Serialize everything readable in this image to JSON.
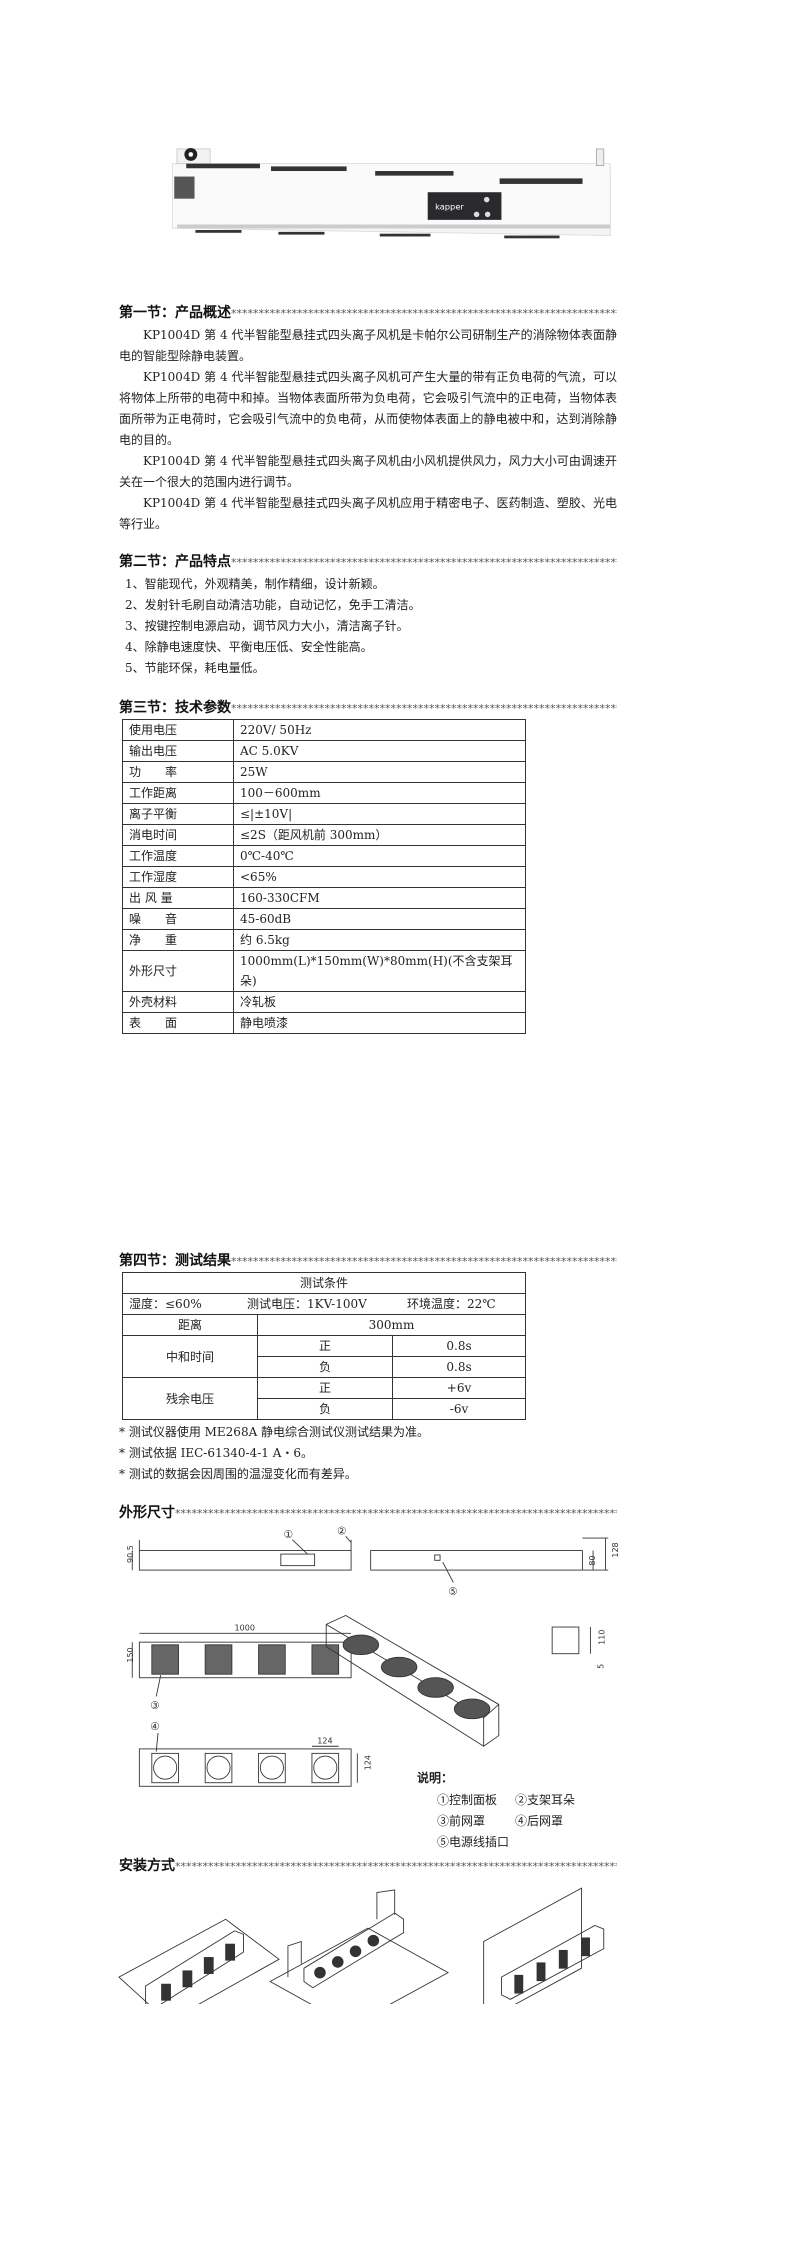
{
  "stars": "**************************************************************************************",
  "product_image": {
    "logo": "kapper"
  },
  "s1": {
    "title": "第一节：产品概述",
    "paragraphs": [
      "KP1004D 第 4 代半智能型悬挂式四头离子风机是卡帕尔公司研制生产的消除物体表面静电的智能型除静电装置。",
      "KP1004D 第 4 代半智能型悬挂式四头离子风机可产生大量的带有正负电荷的气流，可以将物体上所带的电荷中和掉。当物体表面所带为负电荷，它会吸引气流中的正电荷，当物体表面所带为正电荷时，它会吸引气流中的负电荷，从而使物体表面上的静电被中和，达到消除静电的目的。",
      "KP1004D 第 4 代半智能型悬挂式四头离子风机由小风机提供风力，风力大小可由调速开关在一个很大的范围内进行调节。",
      "KP1004D 第 4 代半智能型悬挂式四头离子风机应用于精密电子、医药制造、塑胶、光电等行业。"
    ]
  },
  "s2": {
    "title": "第二节：产品特点",
    "items": [
      "1、智能现代，外观精美，制作精细，设计新颖。",
      "2、发射针毛刷自动清洁功能，自动记忆，免手工清洁。",
      "3、按键控制电源启动，调节风力大小，清洁离子针。",
      "4、除静电速度快、平衡电压低、安全性能高。",
      "5、节能环保，耗电量低。"
    ]
  },
  "s3": {
    "title": "第三节：技术参数",
    "rows": [
      [
        "使用电压",
        "220V/ 50Hz"
      ],
      [
        "输出电压",
        "AC 5.0KV"
      ],
      [
        "功　　率",
        "25W"
      ],
      [
        "工作距离",
        "100－600mm"
      ],
      [
        "离子平衡",
        "≤|±10V|"
      ],
      [
        "消电时间",
        "≤2S（距风机前 300mm）"
      ],
      [
        "工作温度",
        "0℃-40℃"
      ],
      [
        "工作湿度",
        "<65%"
      ],
      [
        "出 风 量",
        "160-330CFM"
      ],
      [
        "噪　　音",
        "45-60dB"
      ],
      [
        "净　　重",
        "约 6.5kg"
      ],
      [
        "外形尺寸",
        "1000mm(L)*150mm(W)*80mm(H)(不含支架耳朵)"
      ],
      [
        "外壳材料",
        "冷轧板"
      ],
      [
        "表　　面",
        "静电喷漆"
      ]
    ]
  },
  "s4": {
    "title": "第四节：测试结果",
    "header": "测试条件",
    "humidity": "湿度：≤60%",
    "voltage": "测试电压：1KV-100V",
    "temp": "环境温度：22℃",
    "distance_label": "距离",
    "distance": "300mm",
    "neutral_label": "中和时间",
    "residual_label": "残余电压",
    "pos": "正",
    "neg": "负",
    "neutral_pos": "0.8s",
    "neutral_neg": "0.8s",
    "residual_pos": "+6v",
    "residual_neg": "-6v",
    "notes": [
      "* 测试仪器使用 ME268A 静电综合测试仪测试结果为准。",
      "* 测试依据 IEC-61340-4-1 A・6。",
      "* 测试的数据会因周围的温湿变化而有差异。"
    ]
  },
  "s5": {
    "title": "外形尺寸",
    "dims": {
      "h1": "90.5",
      "h2": "80",
      "h3": "128",
      "len": "1000",
      "w": "150",
      "fan1": "124",
      "fan2": "124",
      "b1": "110",
      "b2": "5"
    },
    "callouts": [
      "①",
      "②",
      "③",
      "④",
      "⑤"
    ],
    "legend_title": "说明：",
    "legend": [
      "①控制面板",
      "②支架耳朵",
      "③前网罩",
      "④后网罩",
      "⑤电源线插口"
    ]
  },
  "s6": {
    "title": "安装方式"
  }
}
